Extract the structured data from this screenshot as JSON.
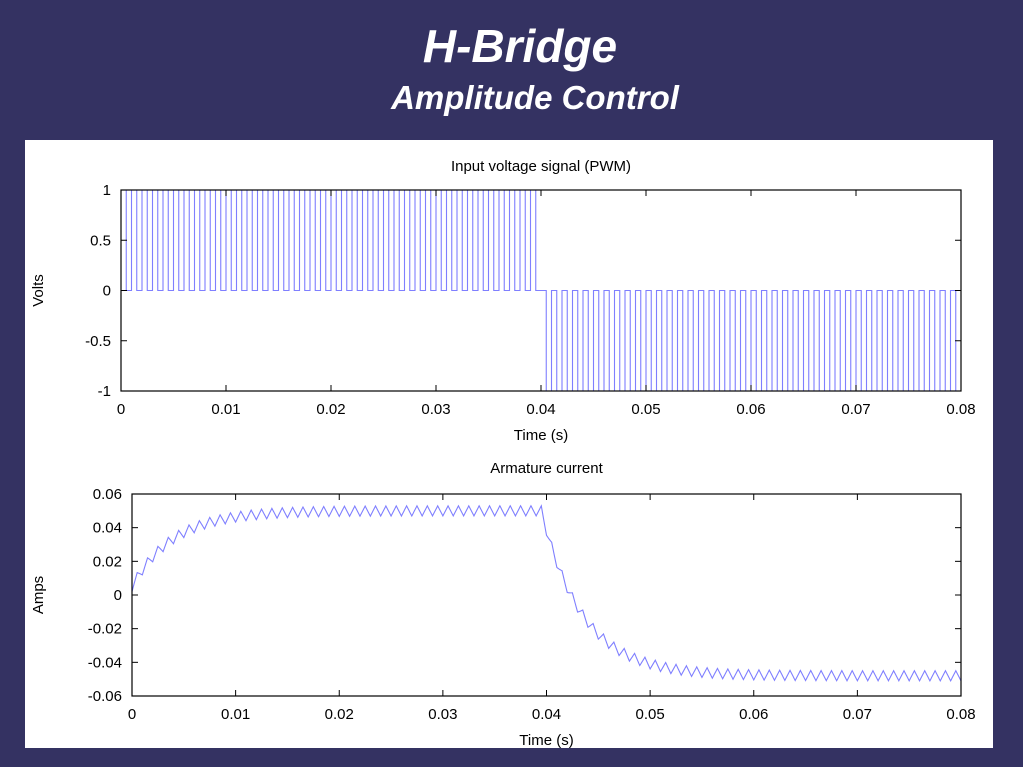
{
  "slide": {
    "title": "H-Bridge",
    "subtitle": "Amplitude Control",
    "background_color": "#343262",
    "panel_color": "#ffffff"
  },
  "chart_data": [
    {
      "type": "line",
      "title": "Input voltage signal (PWM)",
      "xlabel": "Time (s)",
      "ylabel": "Volts",
      "xlim": [
        0,
        0.08
      ],
      "ylim": [
        -1,
        1
      ],
      "x_ticks": [
        "0",
        "0.01",
        "0.02",
        "0.03",
        "0.04",
        "0.05",
        "0.06",
        "0.07",
        "0.08"
      ],
      "y_ticks": [
        "1",
        "0.5",
        "0",
        "-0.5",
        "-1"
      ],
      "grid": false,
      "line_color": "#7f7fff",
      "series": [
        {
          "signal": "pwm_square_wave",
          "segments": [
            {
              "t_start": 0.0,
              "t_end": 0.04,
              "high": 1,
              "low": 0
            },
            {
              "t_start": 0.04,
              "t_end": 0.08,
              "high": 0,
              "low": -1
            }
          ],
          "pulses_per_segment": 40,
          "duty_cycle": 0.5
        }
      ]
    },
    {
      "type": "line",
      "title": "Armature current",
      "xlabel": "Time (s)",
      "ylabel": "Amps",
      "xlim": [
        0,
        0.08
      ],
      "ylim": [
        -0.06,
        0.06
      ],
      "x_ticks": [
        "0",
        "0.01",
        "0.02",
        "0.03",
        "0.04",
        "0.05",
        "0.06",
        "0.07",
        "0.08"
      ],
      "y_ticks": [
        "0.06",
        "0.04",
        "0.02",
        "0",
        "-0.02",
        "-0.04",
        "-0.06"
      ],
      "grid": false,
      "line_color": "#7f7fff",
      "series": [
        {
          "signal": "first_order_response_with_ripple",
          "x": [
            0,
            0.005,
            0.01,
            0.015,
            0.02,
            0.03,
            0.0395,
            0.045,
            0.05,
            0.055,
            0.06,
            0.07,
            0.08
          ],
          "y": [
            0.005,
            0.033,
            0.045,
            0.048,
            0.049,
            0.05,
            0.05,
            -0.022,
            -0.04,
            -0.045,
            -0.047,
            -0.048,
            -0.048
          ],
          "time_constant_s": 0.004,
          "ripple_amplitude": 0.003
        }
      ]
    }
  ]
}
